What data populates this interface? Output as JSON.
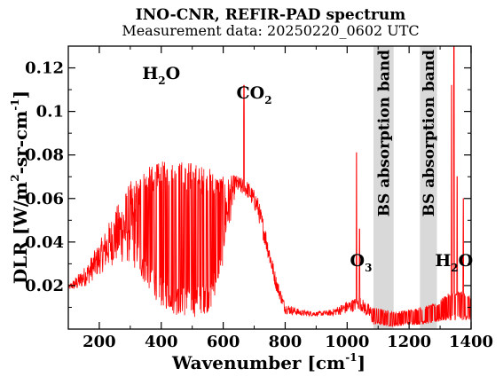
{
  "chart_data": {
    "type": "line",
    "title": "INO-CNR, REFIR-PAD spectrum",
    "subtitle": "Measurement data: 20250220_0602 UTC",
    "xlabel": {
      "base": "Wavenumber [cm",
      "exp": "-1",
      "close": "]"
    },
    "ylabel": {
      "base": "DLR [W/m",
      "exp1": "2",
      "mid": "-sr-cm",
      "exp2": "-1",
      "close": "]"
    },
    "xlim": [
      100,
      1400
    ],
    "ylim": [
      0,
      0.13
    ],
    "xticks": [
      200,
      400,
      600,
      800,
      1000,
      1200,
      1400
    ],
    "yticks": [
      0.02,
      0.04,
      0.06,
      0.08,
      0.1,
      0.12
    ],
    "xtick_labels": [
      "200",
      "400",
      "600",
      "800",
      "1000",
      "1200",
      "1400"
    ],
    "ytick_labels": [
      "0.02",
      "0.04",
      "0.06",
      "0.08",
      "0.1",
      "0.12"
    ],
    "series_color": "#ff0000",
    "band_color": "#d9d9d9",
    "bands": [
      {
        "x0": 1085,
        "x1": 1150,
        "label": "BS absorption band"
      },
      {
        "x0": 1235,
        "x1": 1290,
        "label": "BS absorption band"
      }
    ],
    "annotations": [
      {
        "id": "h2o-left",
        "base": "H",
        "sub": "2",
        "rest": "O",
        "x": 400,
        "y": 0.115
      },
      {
        "id": "co2",
        "base": "CO",
        "sub": "2",
        "rest": "",
        "x": 700,
        "y": 0.106
      },
      {
        "id": "o3",
        "base": "O",
        "sub": "3",
        "rest": "",
        "x": 1045,
        "y": 0.029
      },
      {
        "id": "h2o-right",
        "base": "H",
        "sub": "2",
        "rest": "O",
        "x": 1345,
        "y": 0.029
      }
    ],
    "spectrum": {
      "envelope": [
        [
          100,
          0.02
        ],
        [
          130,
          0.025
        ],
        [
          160,
          0.03
        ],
        [
          200,
          0.04
        ],
        [
          250,
          0.055
        ],
        [
          300,
          0.068
        ],
        [
          350,
          0.074
        ],
        [
          400,
          0.077
        ],
        [
          450,
          0.078
        ],
        [
          500,
          0.077
        ],
        [
          560,
          0.074
        ],
        [
          600,
          0.07
        ],
        [
          640,
          0.071
        ],
        [
          680,
          0.068
        ],
        [
          710,
          0.062
        ],
        [
          740,
          0.045
        ],
        [
          770,
          0.025
        ],
        [
          800,
          0.012
        ],
        [
          850,
          0.009
        ],
        [
          900,
          0.008
        ],
        [
          950,
          0.009
        ],
        [
          1000,
          0.013
        ],
        [
          1040,
          0.015
        ],
        [
          1085,
          0.01
        ],
        [
          1150,
          0.008
        ],
        [
          1200,
          0.009
        ],
        [
          1235,
          0.01
        ],
        [
          1290,
          0.012
        ],
        [
          1320,
          0.016
        ],
        [
          1360,
          0.018
        ],
        [
          1400,
          0.015
        ]
      ],
      "dips": [
        [
          100,
          0.018
        ],
        [
          130,
          0.018
        ],
        [
          160,
          0.02
        ],
        [
          200,
          0.025
        ],
        [
          250,
          0.03
        ],
        [
          300,
          0.03
        ],
        [
          350,
          0.02
        ],
        [
          400,
          0.01
        ],
        [
          450,
          0.006
        ],
        [
          500,
          0.005
        ],
        [
          560,
          0.008
        ],
        [
          600,
          0.03
        ],
        [
          640,
          0.063
        ],
        [
          680,
          0.06
        ],
        [
          710,
          0.052
        ],
        [
          740,
          0.035
        ],
        [
          770,
          0.018
        ],
        [
          800,
          0.007
        ],
        [
          850,
          0.006
        ],
        [
          900,
          0.006
        ],
        [
          950,
          0.006
        ],
        [
          1000,
          0.007
        ],
        [
          1040,
          0.009
        ],
        [
          1085,
          0.002
        ],
        [
          1150,
          0.001
        ],
        [
          1200,
          0.002
        ],
        [
          1235,
          0.002
        ],
        [
          1290,
          0.003
        ],
        [
          1320,
          0.004
        ],
        [
          1360,
          0.004
        ],
        [
          1400,
          0.004
        ]
      ],
      "peaks": [
        [
          667,
          0.112
        ],
        [
          1030,
          0.081
        ],
        [
          1040,
          0.046
        ],
        [
          1337,
          0.112
        ],
        [
          1345,
          0.13
        ],
        [
          1355,
          0.07
        ],
        [
          1375,
          0.06
        ]
      ]
    }
  }
}
